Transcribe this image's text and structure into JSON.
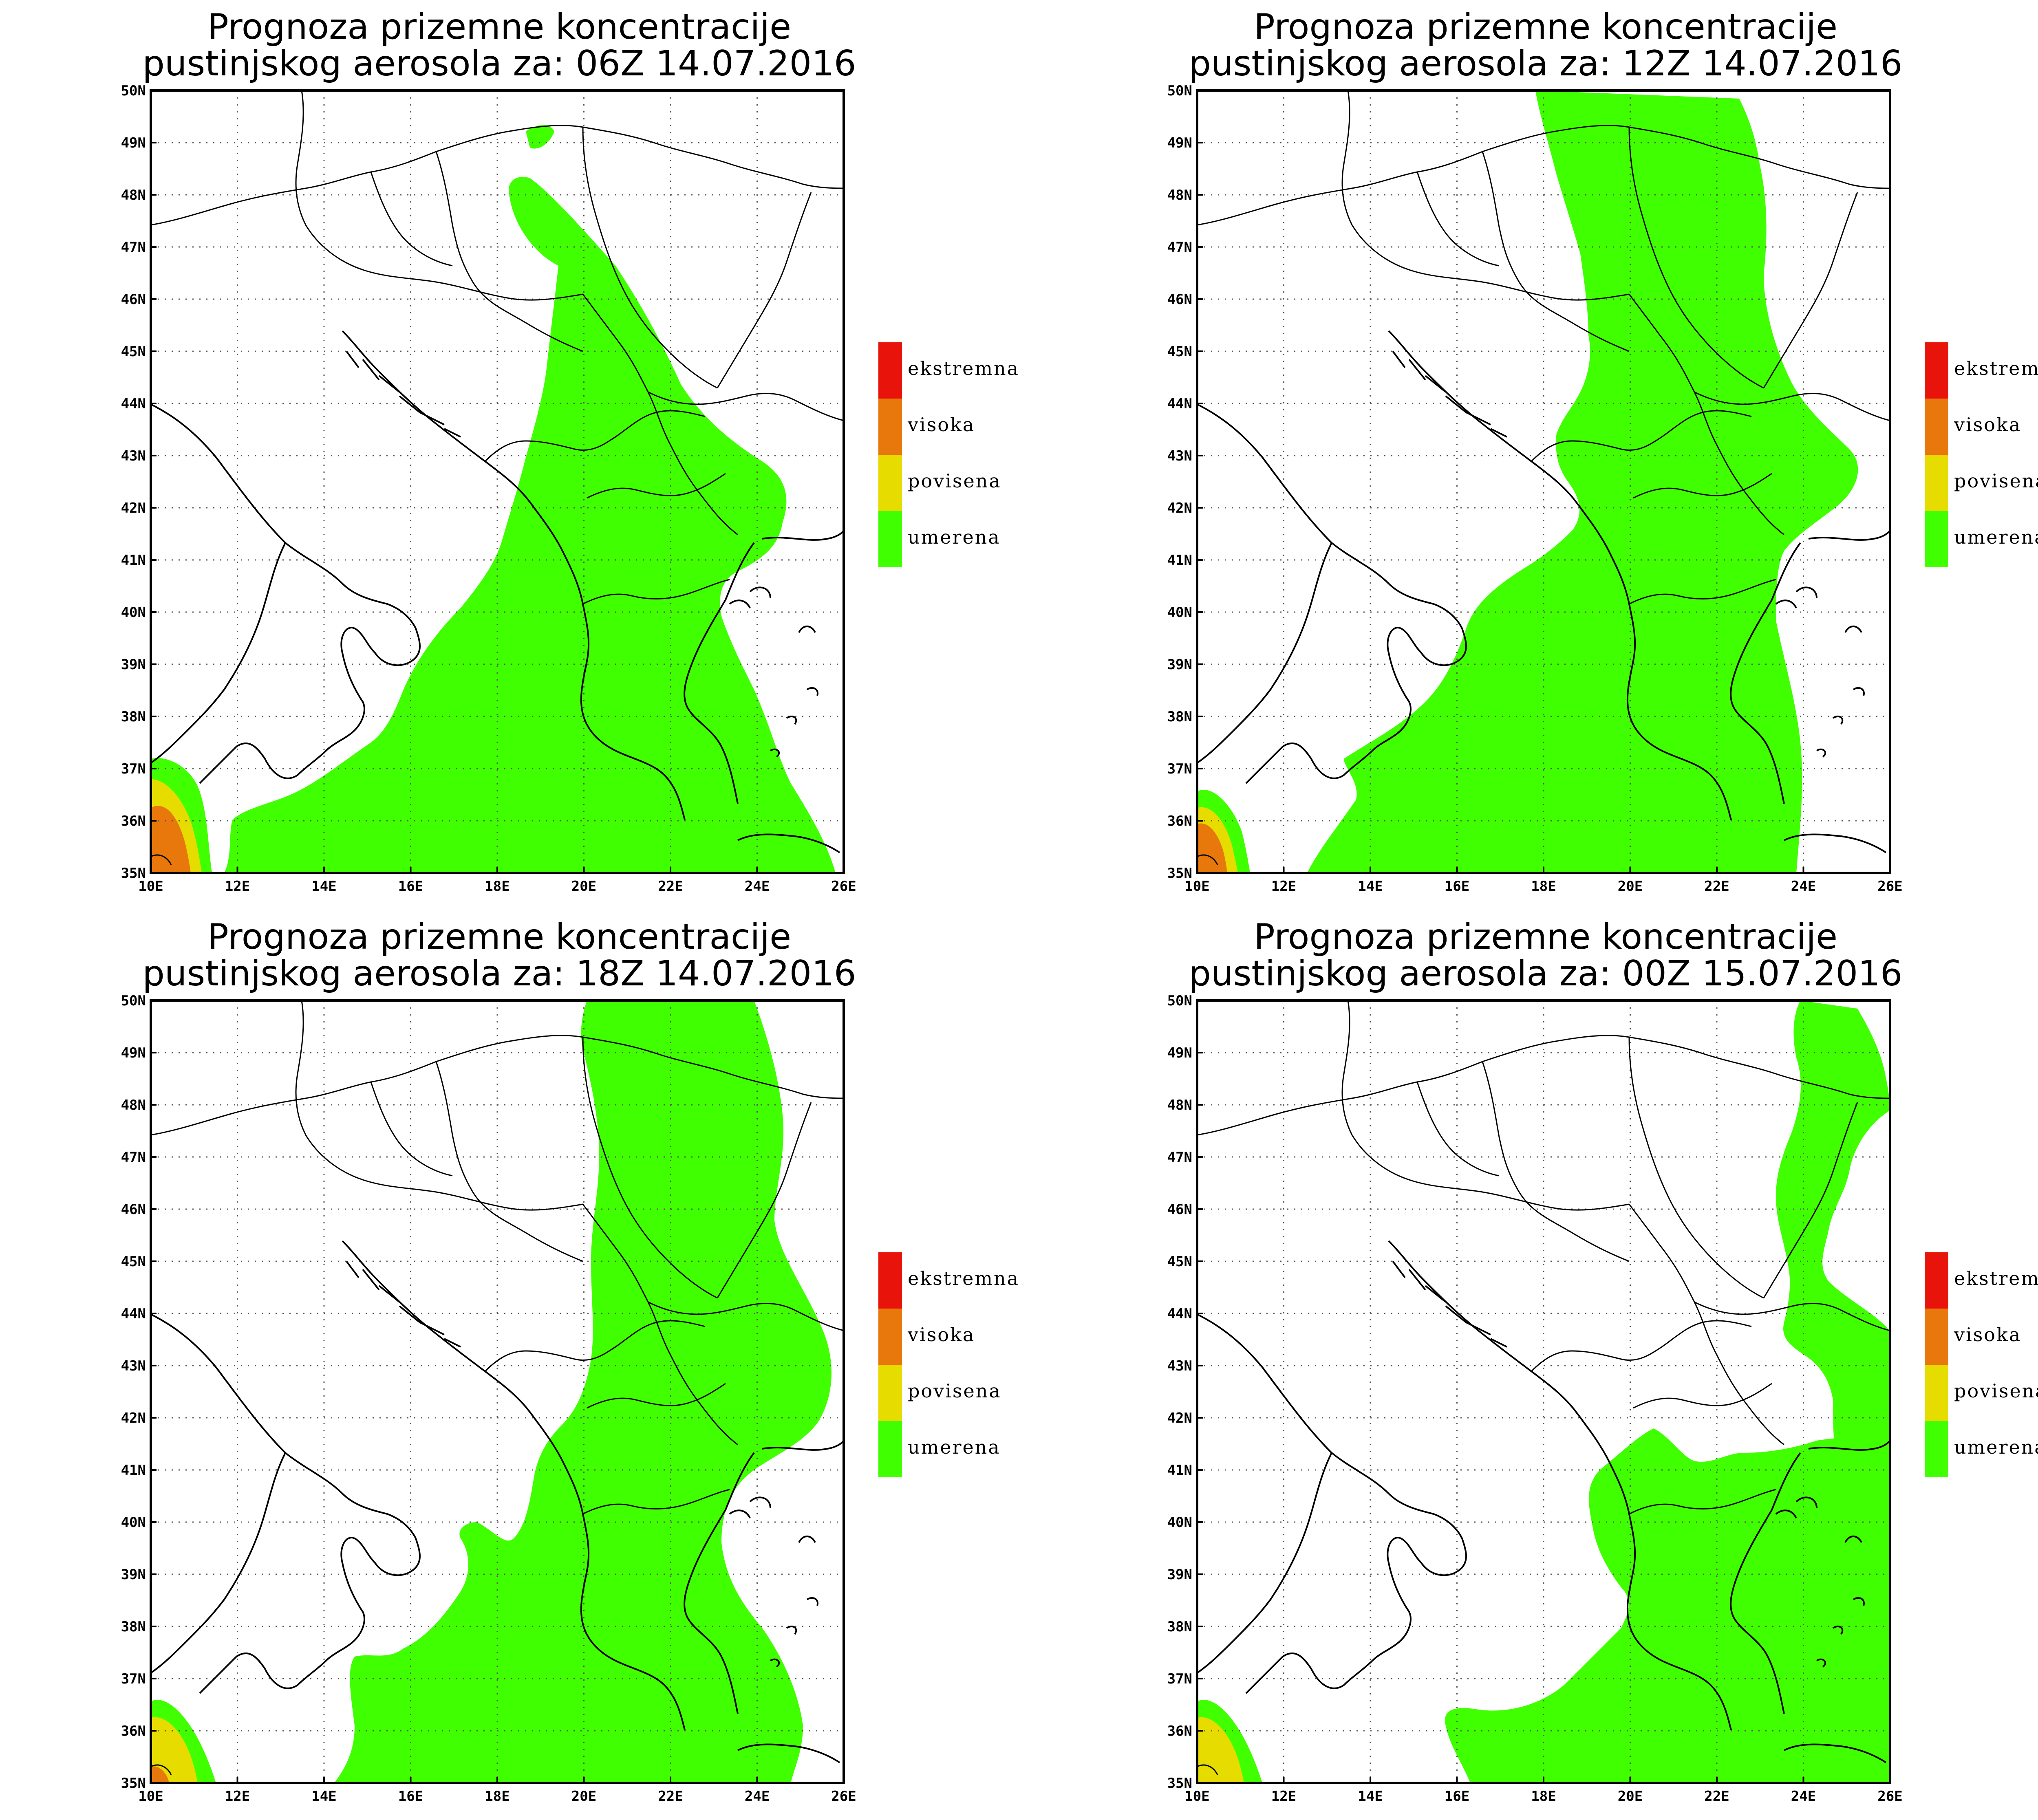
{
  "panels": [
    {
      "title_line1": "Prognoza prizemne koncentracije",
      "title_line2": "pustinjskog aerosola za: 06Z 14.07.2016"
    },
    {
      "title_line1": "Prognoza prizemne koncentracije",
      "title_line2": "pustinjskog aerosola za: 12Z 14.07.2016"
    },
    {
      "title_line1": "Prognoza prizemne koncentracije",
      "title_line2": "pustinjskog aerosola za: 18Z 14.07.2016"
    },
    {
      "title_line1": "Prognoza prizemne koncentracije",
      "title_line2": "pustinjskog aerosola za: 00Z 15.07.2016"
    }
  ],
  "axes": {
    "lat_labels": [
      "50N",
      "49N",
      "48N",
      "47N",
      "46N",
      "45N",
      "44N",
      "43N",
      "42N",
      "41N",
      "40N",
      "39N",
      "38N",
      "37N",
      "36N",
      "35N"
    ],
    "lon_labels": [
      "10E",
      "12E",
      "14E",
      "16E",
      "18E",
      "20E",
      "22E",
      "24E",
      "26E"
    ],
    "lat_range": [
      35,
      50
    ],
    "lon_range": [
      10,
      26
    ],
    "grid": "dotted"
  },
  "legend": {
    "items": [
      {
        "label": "ekstremna",
        "color": "#e8140c"
      },
      {
        "label": "visoka",
        "color": "#e8780c"
      },
      {
        "label": "povisena",
        "color": "#e6dc00"
      },
      {
        "label": "umerena",
        "color": "#40ff00"
      }
    ]
  },
  "colors": {
    "umerena": "#40ff00",
    "povisena": "#e6dc00",
    "visoka": "#e8780c",
    "ekstremna": "#e8140c"
  }
}
